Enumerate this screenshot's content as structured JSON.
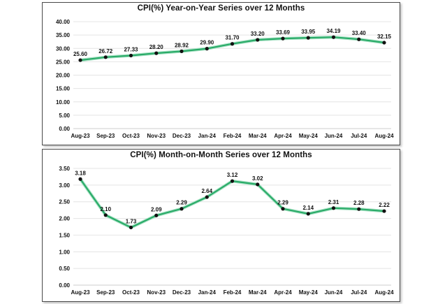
{
  "chart_data": [
    {
      "type": "line",
      "title": "CPI(%) Year-on-Year Series over 12 Months",
      "categories": [
        "Aug-23",
        "Sep-23",
        "Oct-23",
        "Nov-23",
        "Dec-23",
        "Jan-24",
        "Feb-24",
        "Mar-24",
        "Apr-24",
        "May-24",
        "Jun-24",
        "Jul-24",
        "Aug-24"
      ],
      "series": [
        {
          "name": "CPI Year-on-Year",
          "values": [
            25.6,
            26.72,
            27.33,
            28.2,
            28.92,
            29.9,
            31.7,
            33.2,
            33.69,
            33.95,
            34.19,
            33.4,
            32.15
          ]
        }
      ],
      "data_labels": [
        "25.60",
        "26.72",
        "27.33",
        "28.20",
        "28.92",
        "29.90",
        "31.70",
        "33.20",
        "33.69",
        "33.95",
        "34.19",
        "33.40",
        "32.15"
      ],
      "xlabel": "",
      "ylabel": "",
      "ylim": [
        0,
        40
      ],
      "ytick_step": 5,
      "ytick_labels": [
        "0.00",
        "5.00",
        "10.00",
        "15.00",
        "20.00",
        "25.00",
        "30.00",
        "35.00",
        "40.00"
      ],
      "grid": true,
      "legend": "none",
      "line_color": "#2aab68",
      "line_halo_color": "#a9e2c5",
      "marker_color": "#111111",
      "grid_color": "#e4e4e4",
      "baseline_color": "#cccccc"
    },
    {
      "type": "line",
      "title": "CPI(%) Month-on-Month Series over 12 Months",
      "categories": [
        "Aug-23",
        "Sep-23",
        "Oct-23",
        "Nov-23",
        "Dec-23",
        "Jan-24",
        "Feb-24",
        "Mar-24",
        "Apr-24",
        "May-24",
        "Jun-24",
        "Jul-24",
        "Aug-24"
      ],
      "series": [
        {
          "name": "CPI Month-on-Month",
          "values": [
            3.18,
            2.1,
            1.73,
            2.09,
            2.29,
            2.64,
            3.12,
            3.02,
            2.29,
            2.14,
            2.31,
            2.28,
            2.22
          ]
        }
      ],
      "data_labels": [
        "3.18",
        "2.10",
        "1.73",
        "2.09",
        "2.29",
        "2.64",
        "3.12",
        "3.02",
        "2.29",
        "2.14",
        "2.31",
        "2.28",
        "2.22"
      ],
      "xlabel": "",
      "ylabel": "",
      "ylim": [
        0,
        3.5
      ],
      "ytick_step": 0.5,
      "ytick_labels": [
        "0.00",
        "0.50",
        "1.00",
        "1.50",
        "2.00",
        "2.50",
        "3.00",
        "3.50"
      ],
      "grid": true,
      "legend": "none",
      "line_color": "#2aab68",
      "line_halo_color": "#a9e2c5",
      "marker_color": "#111111",
      "grid_color": "#e4e4e4",
      "baseline_color": "#cccccc"
    }
  ]
}
